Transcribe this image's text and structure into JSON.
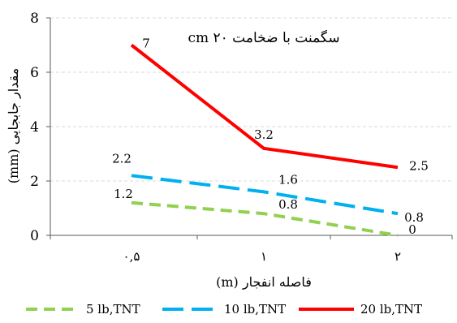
{
  "chart_data": {
    "type": "line",
    "title": "سگمنت با ضخامت ۲۰ cm",
    "xlabel": "فاصله انفجار (m)",
    "ylabel": "مقدار جابجایی (mm)",
    "categories": [
      "۰,۵",
      "۱",
      "۲"
    ],
    "ylim": [
      0,
      8
    ],
    "yticks": [
      0,
      2,
      4,
      6,
      8
    ],
    "grid": true,
    "legend_position": "bottom",
    "series": [
      {
        "name": "5 lb,TNT",
        "values": [
          1.2,
          0.8,
          0
        ],
        "labels": [
          "1.2",
          "0.8",
          "0"
        ],
        "color": "#92d050",
        "dash": "dashed"
      },
      {
        "name": "10 lb,TNT",
        "values": [
          2.2,
          1.6,
          0.8
        ],
        "labels": [
          "2.2",
          "1.6",
          "0.8"
        ],
        "color": "#00b0f0",
        "dash": "long-dash"
      },
      {
        "name": "20 lb,TNT",
        "values": [
          7,
          3.2,
          2.5
        ],
        "labels": [
          "7",
          "3.2",
          "2.5"
        ],
        "color": "#ff0000",
        "dash": "solid"
      }
    ]
  }
}
